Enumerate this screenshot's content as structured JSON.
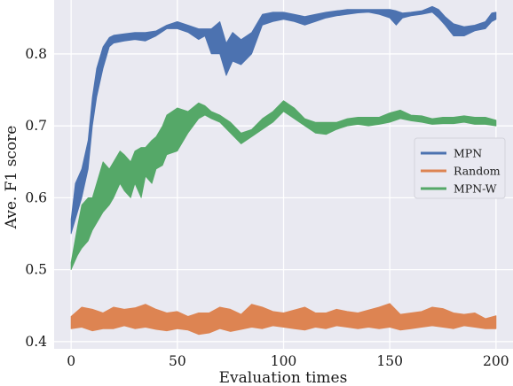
{
  "chart_data": {
    "type": "area",
    "xlabel": "Evaluation times",
    "ylabel": "Ave. F1 score",
    "xlim": [
      -8,
      208
    ],
    "ylim": [
      0.39,
      0.875
    ],
    "x_ticks": [
      0,
      50,
      100,
      150,
      200
    ],
    "y_ticks": [
      0.4,
      0.5,
      0.6,
      0.7,
      0.8
    ],
    "x_tick_labels": [
      "0",
      "50",
      "100",
      "150",
      "200"
    ],
    "y_tick_labels": [
      "0.4",
      "0.5",
      "0.6",
      "0.7",
      "0.8"
    ],
    "grid": true,
    "legend_position": "center-right",
    "background": "#e9e9f1",
    "grid_color": "#ffffff",
    "series": [
      {
        "name": "MPN",
        "color": "#4c72b0",
        "x": [
          0,
          2,
          5,
          8,
          10,
          12,
          15,
          18,
          20,
          25,
          30,
          35,
          40,
          45,
          50,
          55,
          60,
          63,
          66,
          70,
          73,
          76,
          80,
          85,
          90,
          95,
          100,
          105,
          110,
          115,
          120,
          125,
          130,
          135,
          140,
          145,
          150,
          153,
          156,
          160,
          165,
          170,
          173,
          176,
          180,
          185,
          190,
          195,
          198,
          200
        ],
        "lower": [
          0.55,
          0.57,
          0.6,
          0.64,
          0.7,
          0.74,
          0.78,
          0.81,
          0.815,
          0.818,
          0.82,
          0.818,
          0.825,
          0.835,
          0.835,
          0.83,
          0.82,
          0.825,
          0.8,
          0.8,
          0.77,
          0.79,
          0.785,
          0.8,
          0.84,
          0.845,
          0.848,
          0.845,
          0.84,
          0.845,
          0.85,
          0.853,
          0.855,
          0.857,
          0.858,
          0.855,
          0.85,
          0.84,
          0.85,
          0.853,
          0.855,
          0.858,
          0.85,
          0.84,
          0.825,
          0.825,
          0.832,
          0.835,
          0.845,
          0.848
        ],
        "upper": [
          0.57,
          0.62,
          0.64,
          0.68,
          0.74,
          0.78,
          0.81,
          0.823,
          0.826,
          0.828,
          0.83,
          0.83,
          0.832,
          0.84,
          0.845,
          0.84,
          0.835,
          0.835,
          0.835,
          0.845,
          0.815,
          0.83,
          0.82,
          0.83,
          0.855,
          0.858,
          0.858,
          0.855,
          0.852,
          0.855,
          0.858,
          0.86,
          0.862,
          0.862,
          0.862,
          0.862,
          0.862,
          0.86,
          0.857,
          0.858,
          0.86,
          0.866,
          0.862,
          0.852,
          0.842,
          0.838,
          0.84,
          0.845,
          0.857,
          0.858
        ]
      },
      {
        "name": "Random",
        "color": "#dd8452",
        "x": [
          0,
          5,
          10,
          15,
          20,
          25,
          30,
          35,
          40,
          45,
          50,
          55,
          60,
          65,
          70,
          75,
          80,
          85,
          90,
          95,
          100,
          105,
          110,
          115,
          120,
          125,
          130,
          135,
          140,
          145,
          150,
          155,
          160,
          165,
          170,
          175,
          180,
          185,
          190,
          195,
          200
        ],
        "lower": [
          0.418,
          0.42,
          0.415,
          0.418,
          0.418,
          0.422,
          0.418,
          0.42,
          0.417,
          0.415,
          0.418,
          0.416,
          0.41,
          0.412,
          0.418,
          0.414,
          0.417,
          0.42,
          0.418,
          0.422,
          0.42,
          0.418,
          0.416,
          0.42,
          0.418,
          0.422,
          0.42,
          0.418,
          0.42,
          0.418,
          0.42,
          0.416,
          0.418,
          0.42,
          0.422,
          0.42,
          0.418,
          0.422,
          0.42,
          0.418,
          0.418
        ],
        "upper": [
          0.435,
          0.448,
          0.445,
          0.44,
          0.448,
          0.445,
          0.447,
          0.452,
          0.445,
          0.44,
          0.442,
          0.435,
          0.44,
          0.44,
          0.448,
          0.445,
          0.438,
          0.452,
          0.448,
          0.442,
          0.44,
          0.444,
          0.448,
          0.44,
          0.44,
          0.445,
          0.442,
          0.44,
          0.444,
          0.448,
          0.453,
          0.438,
          0.44,
          0.442,
          0.448,
          0.446,
          0.44,
          0.438,
          0.44,
          0.432,
          0.436
        ]
      },
      {
        "name": "MPN-W",
        "color": "#55a868",
        "x": [
          0,
          3,
          5,
          8,
          10,
          13,
          15,
          18,
          20,
          23,
          25,
          28,
          30,
          33,
          35,
          38,
          40,
          43,
          45,
          50,
          55,
          60,
          63,
          66,
          70,
          75,
          80,
          85,
          90,
          95,
          100,
          105,
          110,
          115,
          120,
          125,
          130,
          135,
          140,
          145,
          150,
          155,
          160,
          165,
          170,
          175,
          180,
          185,
          190,
          195,
          200
        ],
        "lower": [
          0.5,
          0.52,
          0.53,
          0.54,
          0.555,
          0.57,
          0.58,
          0.59,
          0.6,
          0.62,
          0.61,
          0.6,
          0.62,
          0.6,
          0.63,
          0.62,
          0.64,
          0.645,
          0.66,
          0.665,
          0.69,
          0.71,
          0.715,
          0.71,
          0.705,
          0.69,
          0.675,
          0.685,
          0.695,
          0.705,
          0.72,
          0.71,
          0.7,
          0.69,
          0.688,
          0.695,
          0.7,
          0.702,
          0.7,
          0.702,
          0.705,
          0.71,
          0.707,
          0.705,
          0.702,
          0.703,
          0.703,
          0.705,
          0.702,
          0.702,
          0.7
        ],
        "upper": [
          0.51,
          0.56,
          0.59,
          0.6,
          0.6,
          0.63,
          0.65,
          0.64,
          0.65,
          0.665,
          0.66,
          0.65,
          0.665,
          0.67,
          0.67,
          0.68,
          0.685,
          0.7,
          0.715,
          0.725,
          0.72,
          0.732,
          0.728,
          0.72,
          0.715,
          0.705,
          0.69,
          0.695,
          0.71,
          0.72,
          0.735,
          0.725,
          0.71,
          0.705,
          0.705,
          0.705,
          0.71,
          0.712,
          0.712,
          0.712,
          0.718,
          0.722,
          0.715,
          0.714,
          0.71,
          0.712,
          0.712,
          0.714,
          0.712,
          0.712,
          0.708
        ]
      }
    ]
  }
}
